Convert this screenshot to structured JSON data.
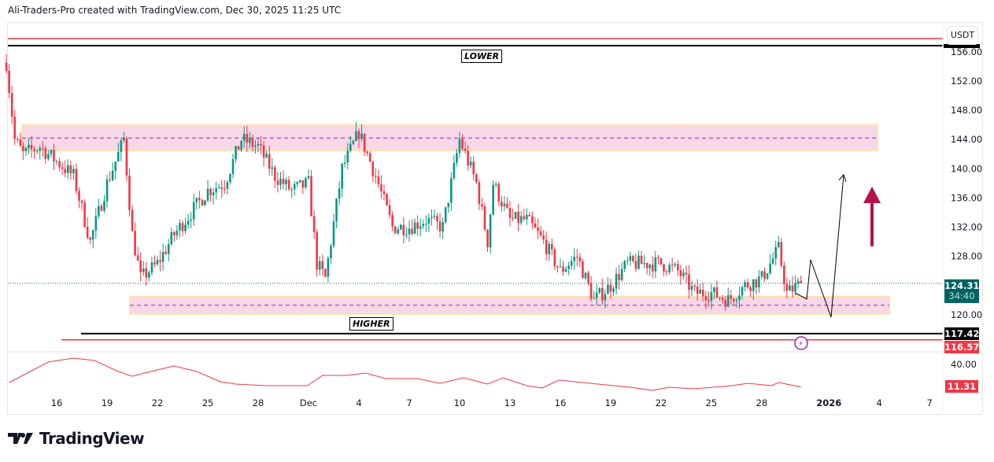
{
  "header": {
    "text": "Ali-Traders-Pro created with TradingView.com, Dec 30, 2025 11:25 UTC"
  },
  "price_axis": {
    "currency": "USDT",
    "ticks": [
      "156.00",
      "152.00",
      "148.00",
      "144.00",
      "140.00",
      "136.00",
      "132.00",
      "128.00",
      "120.00"
    ],
    "tick_values": [
      156,
      152,
      148,
      144,
      140,
      136,
      132,
      128,
      120
    ],
    "current_price": "124.31",
    "countdown": "34:40",
    "level_black": "117.42",
    "level_red": "116.57"
  },
  "indicator_axis": {
    "tick": "40.00",
    "current_value": "11.31"
  },
  "time_axis": {
    "labels": [
      "16",
      "19",
      "22",
      "25",
      "28",
      "Dec",
      "4",
      "7",
      "10",
      "13",
      "16",
      "19",
      "22",
      "25",
      "28",
      "2026",
      "4",
      "7"
    ],
    "dates": [
      "2025-11-16",
      "2025-11-19",
      "2025-11-22",
      "2025-11-25",
      "2025-11-28",
      "2025-12-01",
      "2025-12-04",
      "2025-12-07",
      "2025-12-10",
      "2025-12-13",
      "2025-12-16",
      "2025-12-19",
      "2025-12-22",
      "2025-12-25",
      "2025-12-28",
      "2026-01-01",
      "2026-01-04",
      "2026-01-07"
    ]
  },
  "annotations": {
    "lower_label": "LOWER",
    "higher_label": "HIGHER",
    "upper_zone": [
      142.5,
      146
    ],
    "upper_zone_mid": 144.2,
    "lower_zone": [
      120.1,
      122.5
    ],
    "lower_zone_mid": 121.3,
    "top_red_level": 158,
    "top_black_level": 157
  },
  "colors": {
    "up": "#089981",
    "down": "#f23645",
    "zone": "#f8d7e6",
    "zone_border": "#fde3b0",
    "arrow": "#b5124a",
    "price_tag": "#026262",
    "indicator": "#f23645"
  },
  "chart_data": {
    "type": "candlestick",
    "interval": "4h",
    "price_path": [
      [
        "2025-11-13T00:00",
        154.5
      ],
      [
        "2025-11-13T12:00",
        144
      ],
      [
        "2025-11-14T00:00",
        142
      ],
      [
        "2025-11-15T00:00",
        143
      ],
      [
        "2025-11-16T00:00",
        141
      ],
      [
        "2025-11-17T00:00",
        139
      ],
      [
        "2025-11-18T00:00",
        130
      ],
      [
        "2025-11-19T00:00",
        138
      ],
      [
        "2025-11-20T00:00",
        144
      ],
      [
        "2025-11-20T12:00",
        131
      ],
      [
        "2025-11-21T00:00",
        125
      ],
      [
        "2025-11-22T00:00",
        127
      ],
      [
        "2025-11-23T00:00",
        131
      ],
      [
        "2025-11-24T00:00",
        134
      ],
      [
        "2025-11-25T00:00",
        137
      ],
      [
        "2025-11-26T00:00",
        138
      ],
      [
        "2025-11-27T00:00",
        144
      ],
      [
        "2025-11-28T00:00",
        143
      ],
      [
        "2025-11-29T00:00",
        139
      ],
      [
        "2025-11-30T00:00",
        137
      ],
      [
        "2025-12-01T00:00",
        138
      ],
      [
        "2025-12-01T12:00",
        127
      ],
      [
        "2025-12-02T00:00",
        125
      ],
      [
        "2025-12-03T00:00",
        140
      ],
      [
        "2025-12-04T00:00",
        145
      ],
      [
        "2025-12-05T00:00",
        139
      ],
      [
        "2025-12-06T00:00",
        132
      ],
      [
        "2025-12-07T00:00",
        132
      ],
      [
        "2025-12-08T00:00",
        133
      ],
      [
        "2025-12-09T00:00",
        132
      ],
      [
        "2025-12-10T00:00",
        144
      ],
      [
        "2025-12-11T00:00",
        138
      ],
      [
        "2025-12-11T16:00",
        130
      ],
      [
        "2025-12-12T00:00",
        138
      ],
      [
        "2025-12-13T00:00",
        133
      ],
      [
        "2025-12-14T00:00",
        133
      ],
      [
        "2025-12-15T00:00",
        130
      ],
      [
        "2025-12-16T00:00",
        126
      ],
      [
        "2025-12-17T00:00",
        128
      ],
      [
        "2025-12-18T00:00",
        122
      ],
      [
        "2025-12-19T00:00",
        124
      ],
      [
        "2025-12-20T00:00",
        127
      ],
      [
        "2025-12-21T00:00",
        127
      ],
      [
        "2025-12-22T00:00",
        127
      ],
      [
        "2025-12-23T00:00",
        126
      ],
      [
        "2025-12-24T00:00",
        123
      ],
      [
        "2025-12-25T00:00",
        123
      ],
      [
        "2025-12-26T00:00",
        122
      ],
      [
        "2025-12-27T00:00",
        124
      ],
      [
        "2025-12-28T00:00",
        125
      ],
      [
        "2025-12-29T00:00",
        129
      ],
      [
        "2025-12-29T12:00",
        123
      ],
      [
        "2025-12-30T08:00",
        124.31
      ]
    ],
    "indicator": [
      [
        "2025-11-13T04:00",
        17
      ],
      [
        "2025-11-15T12:00",
        43
      ],
      [
        "2025-11-17T00:00",
        48
      ],
      [
        "2025-11-18T06:00",
        45
      ],
      [
        "2025-11-19T16:00",
        31
      ],
      [
        "2025-11-20T12:00",
        25
      ],
      [
        "2025-11-22T00:00",
        33
      ],
      [
        "2025-11-23T00:00",
        38
      ],
      [
        "2025-11-24T08:00",
        31
      ],
      [
        "2025-11-25T18:00",
        18
      ],
      [
        "2025-11-26T16:00",
        15
      ],
      [
        "2025-11-28T12:00",
        13
      ],
      [
        "2025-11-30T22:00",
        13
      ],
      [
        "2025-12-01T20:00",
        26
      ],
      [
        "2025-12-03T06:00",
        26
      ],
      [
        "2025-12-04T10:00",
        29
      ],
      [
        "2025-12-05T14:00",
        22
      ],
      [
        "2025-12-07T12:00",
        22
      ],
      [
        "2025-12-08T20:00",
        16
      ],
      [
        "2025-12-10T06:00",
        23
      ],
      [
        "2025-12-11T16:00",
        15
      ],
      [
        "2025-12-12T14:00",
        23
      ],
      [
        "2025-12-14T00:00",
        13
      ],
      [
        "2025-12-14T22:00",
        10
      ],
      [
        "2025-12-15T22:00",
        20
      ],
      [
        "2025-12-18T06:00",
        15
      ],
      [
        "2025-12-20T04:00",
        11
      ],
      [
        "2025-12-21T12:00",
        7
      ],
      [
        "2025-12-22T12:00",
        11
      ],
      [
        "2025-12-23T22:00",
        9
      ],
      [
        "2025-12-26T06:00",
        13
      ],
      [
        "2025-12-27T04:00",
        16
      ],
      [
        "2025-12-28T14:00",
        13
      ],
      [
        "2025-12-29T00:00",
        17
      ],
      [
        "2025-12-30T08:00",
        11.31
      ]
    ]
  },
  "footer": {
    "brand": "TradingView"
  }
}
